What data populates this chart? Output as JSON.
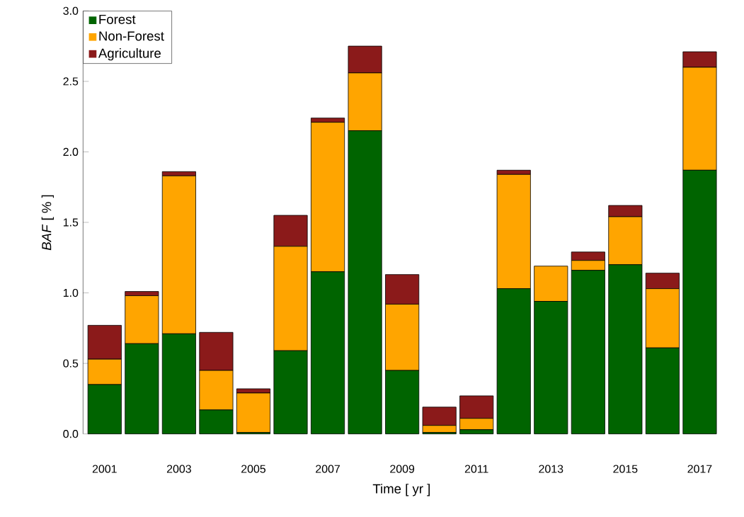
{
  "chart_data": {
    "type": "bar",
    "stacked": true,
    "xlabel": "Time [ yr ]",
    "ylabel": "*BAF* [ % ]",
    "categories": [
      "2001",
      null,
      "2003",
      null,
      "2005",
      null,
      "2007",
      null,
      "2009",
      null,
      "2011",
      null,
      "2013",
      null,
      "2015",
      null,
      "2017"
    ],
    "series": [
      {
        "name": "Forest",
        "color": "#006400",
        "values": [
          0.35,
          0.64,
          0.71,
          0.17,
          0.01,
          0.59,
          1.15,
          2.15,
          0.45,
          0.01,
          0.03,
          1.03,
          0.94,
          1.16,
          1.2,
          0.61,
          1.87
        ]
      },
      {
        "name": "Non-Forest",
        "color": "#ffa500",
        "values": [
          0.18,
          0.34,
          1.12,
          0.28,
          0.28,
          0.74,
          1.06,
          0.41,
          0.47,
          0.05,
          0.08,
          0.81,
          0.25,
          0.07,
          0.34,
          0.42,
          0.73
        ]
      },
      {
        "name": "Agriculture",
        "color": "#8b1a1a",
        "values": [
          0.24,
          0.03,
          0.03,
          0.27,
          0.03,
          0.22,
          0.03,
          0.19,
          0.21,
          0.13,
          0.16,
          0.03,
          0,
          0.06,
          0.08,
          0.11,
          0.11
        ]
      }
    ],
    "ylim": [
      0,
      3
    ],
    "yticks": [
      {
        "value": 0,
        "label": "0.0"
      },
      {
        "value": 0.5,
        "label": "0.5"
      },
      {
        "value": 1,
        "label": "1.0"
      },
      {
        "value": 1.5,
        "label": "1.5"
      },
      {
        "value": 2,
        "label": "2.0"
      },
      {
        "value": 2.5,
        "label": "2.5"
      },
      {
        "value": 3,
        "label": "3.0"
      }
    ],
    "legend": "top left"
  }
}
